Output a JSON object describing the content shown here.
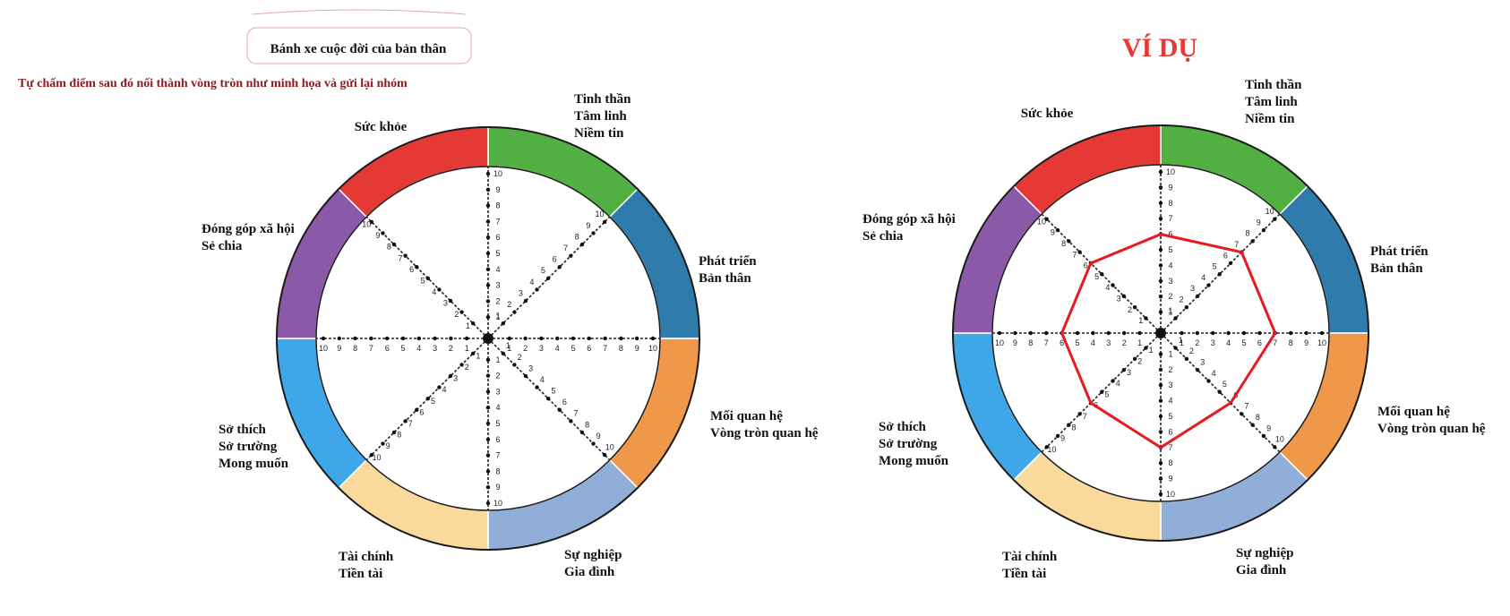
{
  "header": {
    "title_box": "Bánh xe cuộc đời của bản thân",
    "instruction": "Tự chấm điểm sau đó nối thành vòng tròn như minh họa và gửi lại nhóm",
    "example_title": "VÍ DỤ"
  },
  "colors": {
    "instruction": "#8b1a1a",
    "example_title": "#e53935",
    "profile_line": "#e8191f",
    "title_box_border": "#e6a3ad"
  },
  "segments": [
    {
      "id": "tinh-than",
      "lines": [
        "Tinh thần",
        "Tâm linh",
        "Niềm tin"
      ],
      "color": "#52b043"
    },
    {
      "id": "phat-trien",
      "lines": [
        "Phát triển",
        "Bản thân"
      ],
      "color": "#2f7bac"
    },
    {
      "id": "moi-quan-he",
      "lines": [
        "Mối quan hệ",
        "Vòng tròn quan hệ"
      ],
      "color": "#f0984a"
    },
    {
      "id": "su-nghiep",
      "lines": [
        "Sự nghiệp",
        "Gia đình"
      ],
      "color": "#91aed9"
    },
    {
      "id": "tai-chinh",
      "lines": [
        "Tài chính",
        "Tiền tài"
      ],
      "color": "#f9d99c"
    },
    {
      "id": "so-thich",
      "lines": [
        "Sở thích",
        "Sở trường",
        "Mong muốn"
      ],
      "color": "#3fa7e8"
    },
    {
      "id": "dong-gop",
      "lines": [
        "Đóng góp xã hội",
        "Sẻ chia"
      ],
      "color": "#8a5aa8"
    },
    {
      "id": "suc-khoe",
      "lines": [
        "Sức khỏe"
      ],
      "color": "#e53935"
    }
  ],
  "scale": {
    "min": 1,
    "max": 10
  },
  "example_scores": [
    6,
    7,
    7,
    6,
    7,
    6,
    6,
    6
  ]
}
